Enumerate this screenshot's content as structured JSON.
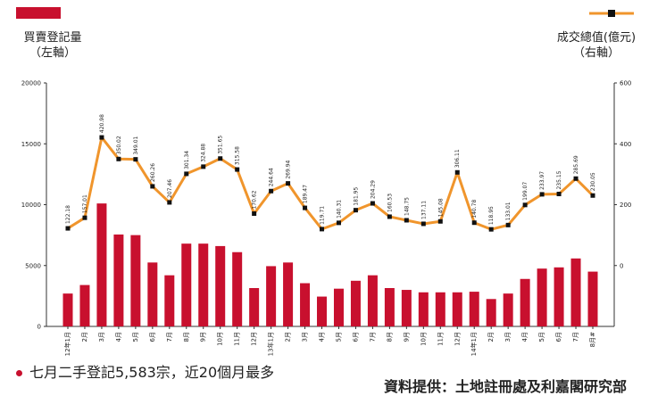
{
  "legend_left": {
    "line1": "買賣登記量",
    "line2": "（左軸）"
  },
  "legend_right": {
    "line1": "成交總值(億元)",
    "line2": "（右軸）"
  },
  "footnote": "七月二手登記5,583宗，近20個月最多",
  "source": "資料提供：土地註冊處及利嘉閣研究部",
  "colors": {
    "bar": "#c8102e",
    "line": "#f0952c",
    "marker": "#111111"
  },
  "chart_data": {
    "type": "bar",
    "categories": [
      "12年1月",
      "2月",
      "3月",
      "4月",
      "5月",
      "6月",
      "7月",
      "8月",
      "9月",
      "10月",
      "11月",
      "12月",
      "13年1月",
      "2月",
      "3月",
      "4月",
      "5月",
      "6月",
      "7月",
      "8月",
      "9月",
      "10月",
      "11月",
      "12月",
      "14年1月",
      "2月",
      "3月",
      "4月",
      "5月",
      "6月",
      "7月",
      "8月#"
    ],
    "series": [
      {
        "type": "bar",
        "axis": "left",
        "values": [
          2700,
          3400,
          10100,
          7550,
          7500,
          5250,
          4200,
          6800,
          6800,
          6600,
          6100,
          3150,
          4950,
          5250,
          3550,
          2450,
          3100,
          3750,
          4200,
          3150,
          3000,
          2800,
          2800,
          2800,
          2850,
          2250,
          2700,
          3900,
          4750,
          4850,
          5583,
          4500
        ]
      },
      {
        "type": "line",
        "axis": "right",
        "values": [
          122.18,
          157.01,
          420.98,
          350.02,
          349.01,
          260.26,
          207.46,
          301.34,
          324.88,
          351.65,
          315.58,
          170.62,
          244.64,
          269.94,
          189.47,
          119.71,
          140.31,
          181.95,
          204.29,
          160.53,
          148.75,
          137.11,
          145.08,
          306.11,
          140.78,
          118.95,
          133.01,
          199.07,
          233.97,
          235.15,
          285.69,
          230.05
        ],
        "labels": [
          "122.18",
          "157.01",
          "420.98",
          "350.02",
          "349.01",
          "260.26",
          "207.46",
          "301.34",
          "324.88",
          "351.65",
          "315.58",
          "170.62",
          "244.64",
          "269.94",
          "189.47",
          "119.71",
          "140.31",
          "181.95",
          "204.29",
          "160.53",
          "148.75",
          "137.11",
          "145.08",
          "306.11",
          "140.78",
          "118.95",
          "133.01",
          "199.07",
          "233.97",
          "235.15",
          "285.69",
          "230.05"
        ]
      }
    ],
    "left_axis": {
      "ticks": [
        "0",
        "5000",
        "10000",
        "15000",
        "20000"
      ],
      "lim": [
        0,
        20000
      ]
    },
    "right_axis": {
      "ticks": [
        "0",
        "200",
        "400",
        "600"
      ],
      "lim": [
        -200,
        600
      ]
    },
    "grid": false
  }
}
